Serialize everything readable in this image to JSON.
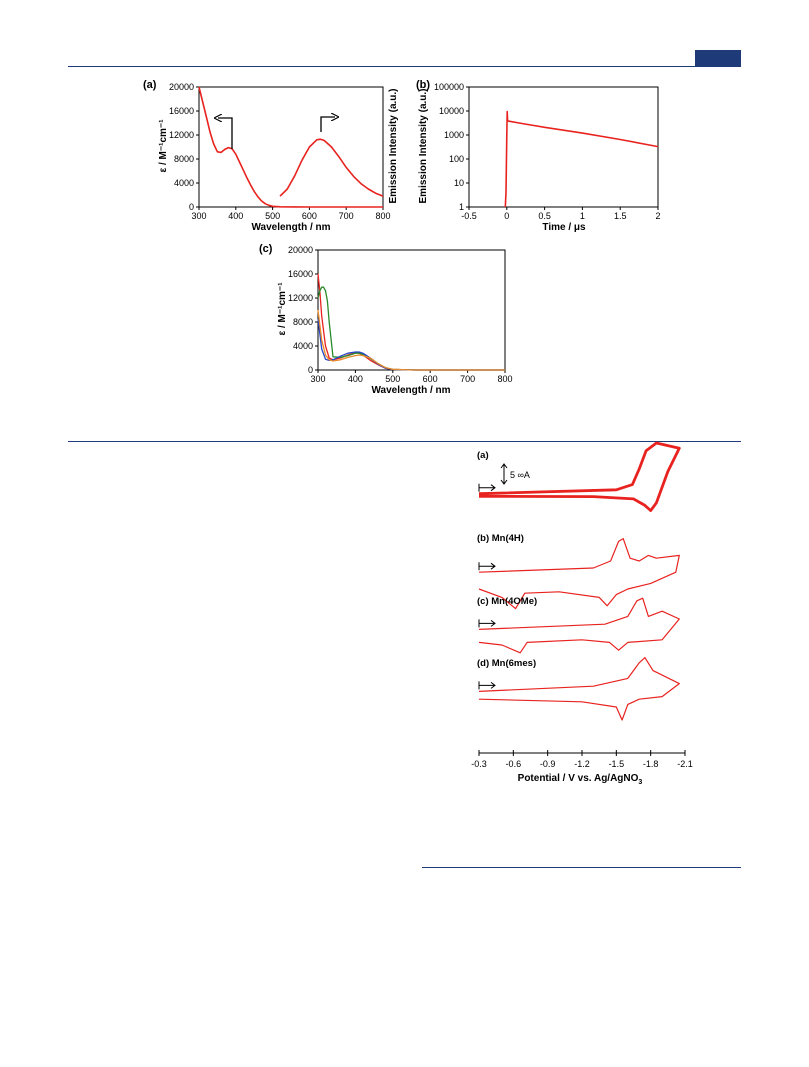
{
  "colors": {
    "rule": "#1f3a78",
    "red": "#e8231f",
    "green": "#2a8a2a",
    "blue": "#2446c8",
    "orange": "#e98a2a",
    "black": "#000000"
  },
  "chart_data": [
    {
      "type": "line",
      "panel_label": "(a)",
      "xlabel": "Wavelength / nm",
      "ylabel": "ε / M⁻¹cm⁻¹",
      "y2label": "Emission Intensity (a.u.)",
      "xlim": [
        300,
        800
      ],
      "ylim": [
        0,
        20000
      ],
      "xticks": [
        "300",
        "400",
        "500",
        "600",
        "700",
        "800"
      ],
      "yticks": [
        "0",
        "4000",
        "8000",
        "12000",
        "16000",
        "20000"
      ],
      "grid": false,
      "series": [
        {
          "x": [
            300,
            310,
            320,
            330,
            340,
            350,
            360,
            370,
            380,
            390,
            400,
            410,
            420,
            430,
            440,
            450,
            460,
            470,
            480,
            490,
            500,
            520,
            560,
            600,
            650,
            700,
            750,
            800
          ],
          "y": [
            20000,
            17500,
            15000,
            12500,
            10500,
            9200,
            9100,
            9600,
            9900,
            9700,
            8800,
            7500,
            6200,
            4900,
            3700,
            2600,
            1700,
            1000,
            550,
            280,
            120,
            40,
            10,
            0,
            0,
            0,
            0,
            0
          ]
        },
        {
          "x": [
            520,
            540,
            560,
            580,
            600,
            620,
            630,
            640,
            660,
            680,
            700,
            720,
            740,
            760,
            780,
            800
          ],
          "y": [
            1800,
            3000,
            5200,
            7800,
            10000,
            11200,
            11300,
            11100,
            10000,
            8400,
            6600,
            5100,
            3900,
            3000,
            2300,
            1800
          ]
        }
      ]
    },
    {
      "type": "line",
      "panel_label": "(b)",
      "xlabel": "Time / μs",
      "ylabel": "Emission Intensity (a.u.)",
      "xlim": [
        -0.5,
        2
      ],
      "ylim": [
        1,
        100000
      ],
      "yscale": "log",
      "xticks": [
        "-0.5",
        "0",
        "0.5",
        "1",
        "1.5",
        "2"
      ],
      "yticks": [
        "1",
        "10",
        "100",
        "1000",
        "10000",
        "100000"
      ],
      "grid": false,
      "series": [
        {
          "x": [
            -0.02,
            -0.01,
            0.0,
            0.005,
            0.01,
            0.02,
            0.2,
            0.5,
            1.0,
            1.5,
            2.0
          ],
          "y": [
            1,
            4,
            1000,
            9500,
            4000,
            3800,
            3000,
            2100,
            1200,
            650,
            330
          ]
        }
      ]
    },
    {
      "type": "line",
      "panel_label": "(c)",
      "xlabel": "Wavelength / nm",
      "ylabel": "ε / M⁻¹cm⁻¹",
      "xlim": [
        300,
        800
      ],
      "ylim": [
        0,
        20000
      ],
      "xticks": [
        "300",
        "400",
        "500",
        "600",
        "700",
        "800"
      ],
      "yticks": [
        "0",
        "4000",
        "8000",
        "12000",
        "16000",
        "20000"
      ],
      "grid": false,
      "series": [
        {
          "x": [
            300,
            305,
            310,
            320,
            330,
            340,
            360,
            380,
            400,
            410,
            420,
            440,
            460,
            480,
            500,
            560,
            700,
            800
          ],
          "y": [
            16000,
            13000,
            9000,
            4000,
            2000,
            1700,
            2000,
            2500,
            2900,
            2800,
            2500,
            1600,
            900,
            300,
            100,
            0,
            0,
            0
          ]
        },
        {
          "x": [
            300,
            305,
            310,
            315,
            320,
            325,
            330,
            340,
            360,
            380,
            400,
            410,
            420,
            440,
            460,
            480,
            500,
            560,
            700,
            800
          ],
          "y": [
            12000,
            13200,
            13800,
            13800,
            13200,
            11500,
            8000,
            2200,
            2100,
            2400,
            2800,
            2800,
            2600,
            1900,
            1100,
            400,
            100,
            0,
            0,
            0
          ]
        },
        {
          "x": [
            300,
            305,
            310,
            320,
            330,
            340,
            360,
            380,
            400,
            410,
            420,
            440,
            460,
            480,
            500,
            560,
            700,
            800
          ],
          "y": [
            8500,
            6000,
            3500,
            1800,
            1600,
            1700,
            2300,
            2800,
            3000,
            3000,
            2800,
            2000,
            1000,
            300,
            80,
            0,
            0,
            0
          ]
        },
        {
          "x": [
            300,
            310,
            320,
            330,
            340,
            360,
            380,
            400,
            410,
            420,
            440,
            460,
            480,
            500,
            560,
            700,
            800
          ],
          "y": [
            10000,
            5000,
            2500,
            1700,
            1500,
            1700,
            2100,
            2400,
            2500,
            2400,
            2000,
            1100,
            400,
            100,
            0,
            0,
            0
          ]
        }
      ]
    },
    {
      "type": "line",
      "xlabel": "Potential / V vs. Ag/AgNO",
      "xlabel_sub": "3",
      "xlim": [
        -0.3,
        -2.1
      ],
      "xticks": [
        "-0.3",
        "-0.6",
        "-0.9",
        "-1.2",
        "-1.5",
        "-1.8",
        "-2.1"
      ],
      "scale_bar": "5 ∞A",
      "series": [
        {
          "name": "(a)",
          "forward": [
            [
              -0.3,
              0.5
            ],
            [
              -1.5,
              2
            ],
            [
              -1.64,
              4
            ],
            [
              -1.7,
              10
            ],
            [
              -1.76,
              17
            ],
            [
              -1.85,
              20
            ],
            [
              -2.05,
              18
            ]
          ],
          "reverse": [
            [
              -2.05,
              18
            ],
            [
              -1.95,
              9
            ],
            [
              -1.85,
              -3
            ],
            [
              -1.8,
              -6
            ],
            [
              -1.75,
              -4
            ],
            [
              -1.65,
              -1.5
            ],
            [
              -1.3,
              -0.6
            ],
            [
              -0.3,
              -0.5
            ]
          ]
        },
        {
          "name": "(b) Mn(4H)",
          "forward": [
            [
              -0.3,
              1
            ],
            [
              -1.3,
              2.5
            ],
            [
              -1.45,
              5
            ],
            [
              -1.52,
              12
            ],
            [
              -1.56,
              13
            ],
            [
              -1.62,
              6
            ],
            [
              -1.7,
              5
            ],
            [
              -1.78,
              7
            ],
            [
              -1.85,
              6
            ],
            [
              -2.05,
              7
            ]
          ],
          "reverse": [
            [
              -2.05,
              7
            ],
            [
              -2.02,
              1
            ],
            [
              -1.8,
              -3
            ],
            [
              -1.6,
              -5
            ],
            [
              -1.5,
              -7
            ],
            [
              -1.42,
              -11
            ],
            [
              -1.35,
              -8
            ],
            [
              -1.0,
              -6
            ],
            [
              -0.7,
              -6.5
            ],
            [
              -0.62,
              -12
            ],
            [
              -0.5,
              -8
            ],
            [
              -0.3,
              -5
            ]
          ]
        },
        {
          "name": "(c) Mn(4OMe)",
          "forward": [
            [
              -0.3,
              1
            ],
            [
              -1.4,
              3
            ],
            [
              -1.6,
              6
            ],
            [
              -1.68,
              12
            ],
            [
              -1.73,
              13
            ],
            [
              -1.78,
              6
            ],
            [
              -1.9,
              8
            ],
            [
              -2.05,
              5
            ]
          ],
          "reverse": [
            [
              -2.05,
              5
            ],
            [
              -1.9,
              -3
            ],
            [
              -1.6,
              -4
            ],
            [
              -1.52,
              -7
            ],
            [
              -1.44,
              -4
            ],
            [
              -1.2,
              -3
            ],
            [
              -0.72,
              -4
            ],
            [
              -0.66,
              -8
            ],
            [
              -0.5,
              -5
            ],
            [
              -0.3,
              -4
            ]
          ]
        },
        {
          "name": "(d) Mn(6mes)",
          "forward": [
            [
              -0.3,
              1
            ],
            [
              -1.3,
              3
            ],
            [
              -1.6,
              6
            ],
            [
              -1.7,
              12
            ],
            [
              -1.75,
              14
            ],
            [
              -1.82,
              9
            ],
            [
              -2.05,
              4
            ]
          ],
          "reverse": [
            [
              -2.05,
              4
            ],
            [
              -1.9,
              -1
            ],
            [
              -1.7,
              -2
            ],
            [
              -1.6,
              -4
            ],
            [
              -1.55,
              -10
            ],
            [
              -1.5,
              -5
            ],
            [
              -1.2,
              -3
            ],
            [
              -0.3,
              -2
            ]
          ]
        }
      ]
    }
  ]
}
